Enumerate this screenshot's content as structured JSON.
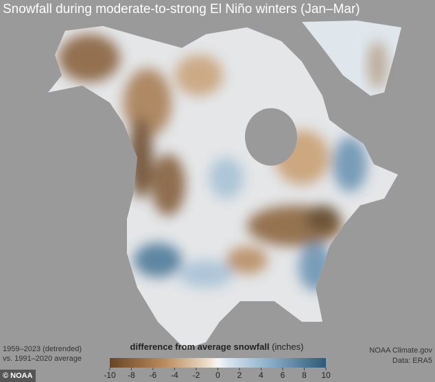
{
  "header": {
    "title": "Snowfall during moderate-to-strong El Niño winters (Jan–Mar)"
  },
  "footnote": {
    "line1": "1959–2023 (detrended)",
    "line2": "vs. 1991–2020 average"
  },
  "legend": {
    "title": "difference from average snowfall",
    "units": "(inches)",
    "range": [
      -10,
      10
    ],
    "ticks": [
      -10,
      -8,
      -6,
      -4,
      -2,
      0,
      2,
      4,
      6,
      8,
      10
    ]
  },
  "credits": {
    "source": "NOAA Climate.gov",
    "data": "Data: ERA5",
    "logo": "© NOAA"
  }
}
